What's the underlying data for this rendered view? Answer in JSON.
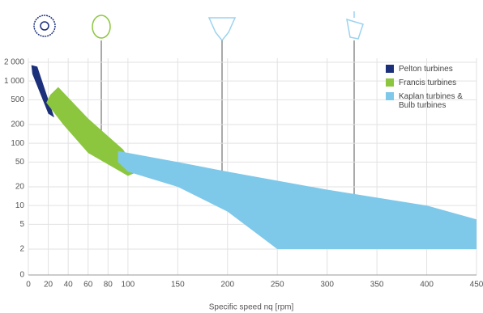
{
  "chart_data": {
    "type": "area-range",
    "x_label": "Specific speed nq [rpm]",
    "xlim": [
      0,
      450
    ],
    "xticks": [
      0,
      20,
      40,
      60,
      80,
      100,
      150,
      200,
      250,
      300,
      350,
      400,
      450
    ],
    "ylim": [
      0,
      2000
    ],
    "log_scale": true,
    "yticks": [
      0,
      2,
      5,
      10,
      20,
      50,
      100,
      200,
      {
        "value": 500,
        "label": "500"
      },
      {
        "value": 1000,
        "label": "1 000"
      },
      {
        "value": 2000,
        "label": "2 000"
      }
    ],
    "grid": true,
    "legend": "top-right",
    "series": [
      {
        "name": "Pelton turbines",
        "color": "#1b2f7a",
        "x": [
          3,
          9,
          26,
          20,
          4
        ],
        "values": [
          1800,
          1700,
          260,
          300,
          1300
        ]
      },
      {
        "name": "Francis turbines",
        "color": "#8cc63f",
        "x": [
          22,
          30,
          60,
          95,
          110,
          100,
          60,
          35,
          18
        ],
        "values": [
          600,
          800,
          250,
          80,
          35,
          30,
          70,
          200,
          450
        ]
      },
      {
        "name": "Kaplan turbines & Bulb turbines",
        "color": "#7ec8ea",
        "x": [
          90,
          150,
          200,
          300,
          400,
          450,
          450,
          250,
          200,
          150,
          100,
          90
        ],
        "values": [
          75,
          50,
          35,
          18,
          10,
          6,
          2,
          2,
          8,
          20,
          35,
          50
        ]
      }
    ]
  }
}
